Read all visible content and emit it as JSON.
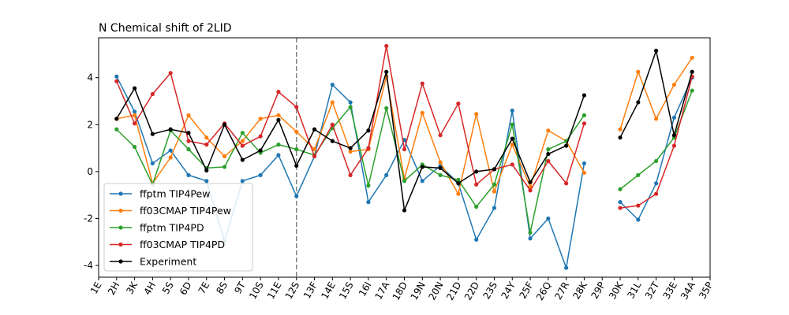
{
  "chart_data": {
    "type": "line",
    "title": "N Chemical shift of 2LID",
    "xlabel": "",
    "ylabel": "",
    "categories": [
      "1E",
      "2H",
      "3K",
      "4H",
      "5S",
      "6D",
      "7E",
      "8S",
      "9T",
      "10S",
      "11E",
      "12S",
      "13F",
      "14E",
      "15S",
      "16I",
      "17A",
      "18D",
      "19N",
      "20N",
      "21D",
      "22D",
      "23S",
      "24Y",
      "25F",
      "26Q",
      "27R",
      "28K",
      "29P",
      "30K",
      "31L",
      "32T",
      "33E",
      "34A",
      "35P"
    ],
    "ylim": [
      -4.5,
      5.7
    ],
    "yticks": [
      -4,
      -2,
      0,
      2,
      4
    ],
    "grid": false,
    "legend_position": "lower-left",
    "vline": {
      "x": "12S",
      "style": "dashed",
      "color": "#808080"
    },
    "series": [
      {
        "name": "ffptm TIP4Pew",
        "color": "#1f77b4",
        "values": [
          null,
          4.05,
          2.55,
          0.35,
          0.9,
          -0.15,
          -0.4,
          -2.95,
          -0.4,
          -0.15,
          0.7,
          -1.05,
          0.65,
          3.7,
          2.95,
          -1.3,
          -0.15,
          1.35,
          -0.4,
          0.25,
          -0.5,
          -2.9,
          -1.55,
          2.6,
          -2.85,
          -2.0,
          -4.1,
          0.35,
          null,
          -1.3,
          -2.05,
          -0.5,
          2.3,
          4.0,
          null
        ]
      },
      {
        "name": "ff03CMAP TIP4Pew",
        "color": "#ff7f0e",
        "values": [
          null,
          2.25,
          2.4,
          -0.5,
          0.6,
          2.4,
          1.45,
          0.65,
          1.3,
          2.25,
          2.4,
          1.7,
          0.95,
          2.95,
          0.85,
          0.95,
          4.05,
          -0.3,
          2.5,
          0.4,
          -0.95,
          2.45,
          -0.85,
          1.15,
          -0.65,
          1.75,
          1.3,
          -0.05,
          null,
          1.8,
          4.25,
          2.25,
          3.7,
          4.85,
          null
        ]
      },
      {
        "name": "ffptm TIP4PD",
        "color": "#2ca02c",
        "values": [
          null,
          1.8,
          1.05,
          -0.55,
          1.75,
          0.95,
          0.15,
          0.2,
          1.65,
          0.8,
          1.15,
          0.95,
          0.7,
          1.85,
          2.75,
          -0.6,
          2.7,
          -0.4,
          0.3,
          -0.15,
          -0.35,
          -1.5,
          -0.55,
          2.0,
          -2.6,
          0.95,
          1.3,
          2.4,
          null,
          -0.75,
          -0.15,
          0.45,
          1.45,
          3.45,
          null
        ]
      },
      {
        "name": "ff03CMAP TIP4PD",
        "color": "#d62728",
        "values": [
          null,
          3.85,
          2.05,
          3.3,
          4.2,
          1.3,
          1.15,
          2.05,
          1.1,
          1.5,
          3.4,
          2.75,
          0.65,
          2.0,
          -0.15,
          1.0,
          5.35,
          0.95,
          3.75,
          1.55,
          2.9,
          -0.55,
          0.1,
          0.3,
          -0.8,
          0.45,
          -0.5,
          2.05,
          null,
          -1.55,
          -1.45,
          -0.95,
          1.1,
          4.05,
          null
        ]
      },
      {
        "name": "Experiment",
        "color": "#000000",
        "values": [
          null,
          2.25,
          3.55,
          1.6,
          1.8,
          1.65,
          0.05,
          2.0,
          0.5,
          0.9,
          2.2,
          0.25,
          1.8,
          1.3,
          1.0,
          1.75,
          4.25,
          -1.65,
          0.2,
          0.15,
          -0.5,
          0.0,
          0.1,
          1.4,
          -0.45,
          0.75,
          1.1,
          3.25,
          null,
          1.45,
          2.95,
          5.15,
          1.55,
          4.25,
          null
        ]
      }
    ]
  }
}
